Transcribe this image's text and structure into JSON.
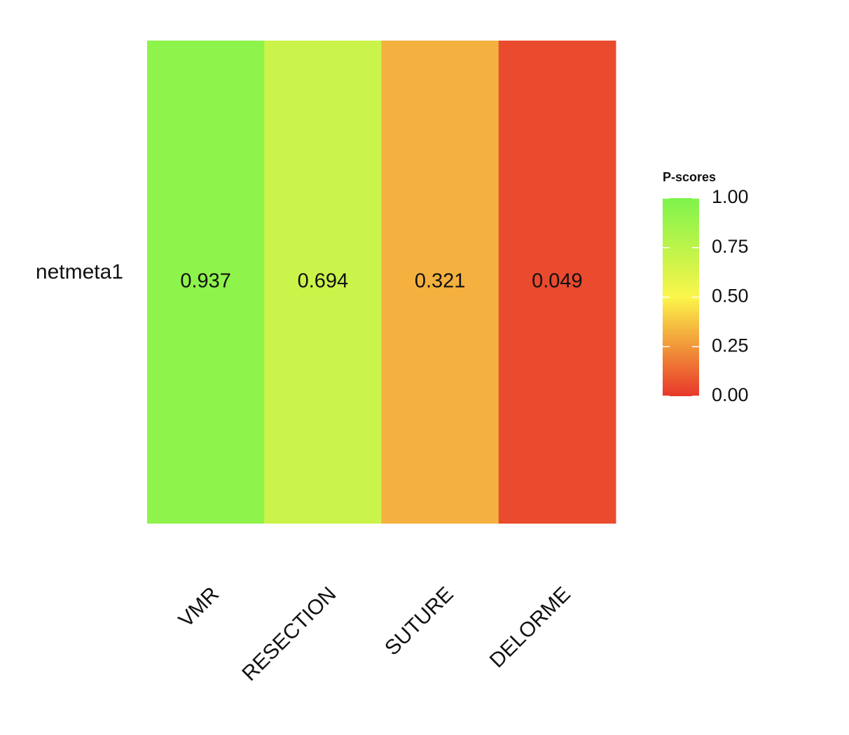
{
  "chart_data": {
    "type": "heatmap",
    "rows": [
      "netmeta1"
    ],
    "categories": [
      "VMR",
      "RESECTION",
      "SUTURE",
      "DELORME"
    ],
    "values": [
      [
        0.937,
        0.694,
        0.321,
        0.049
      ]
    ],
    "colorscale": [
      [
        0,
        "#e8372a"
      ],
      [
        0.5,
        "#fbf54a"
      ],
      [
        1,
        "#7ef34b"
      ]
    ],
    "colorbar": {
      "title": "P-scores",
      "lim": [
        0,
        1
      ],
      "ticks": [
        {
          "value": 0,
          "label": "0.00"
        },
        {
          "value": 0.25,
          "label": "0.25"
        },
        {
          "value": 0.5,
          "label": "0.50"
        },
        {
          "value": 0.75,
          "label": "0.75"
        },
        {
          "value": 1,
          "label": "1.00"
        }
      ]
    }
  }
}
